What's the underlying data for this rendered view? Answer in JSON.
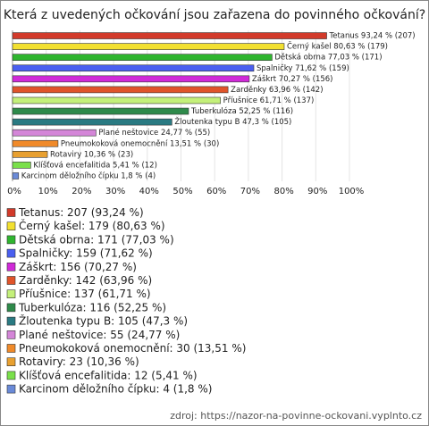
{
  "chart_data": {
    "type": "bar",
    "orientation": "horizontal",
    "title": "Která z uvedených očkování jsou zařazena do povinného očkování?",
    "categories": [
      "Tetanus",
      "Černý kašel",
      "Dětská obrna",
      "Spalničky",
      "Záškrt",
      "Zarděnky",
      "Příušnice",
      "Tuberkulóza",
      "Žloutenka typu B",
      "Plané neštovice",
      "Pneumokoková onemocnění",
      "Rotaviry",
      "Klíšťová encefalitida",
      "Karcinom děložního čípku"
    ],
    "values": [
      93.24,
      80.63,
      77.03,
      71.62,
      70.27,
      63.96,
      61.71,
      52.25,
      47.3,
      24.77,
      13.51,
      10.36,
      5.41,
      1.8
    ],
    "value_labels": [
      "Tetanus 93,24 % (207)",
      "Černý kašel 80,63 % (179)",
      "Dětská obrna 77,03 % (171)",
      "Spalničky 71,62 % (159)",
      "Záškrt 70,27 % (156)",
      "Zarděnky 63,96 % (142)",
      "Příušnice 61,71 % (137)",
      "Tuberkulóza 52,25 % (116)",
      "Žloutenka typu B 47,3 % (105)",
      "Plané neštovice 24,77 % (55)",
      "Pneumokoková onemocnění 13,51 % (30)",
      "Rotaviry 10,36 % (23)",
      "Klíšťová encefalitida 5,41 % (12)",
      "Karcinom děložního čípku 1,8 % (4)"
    ],
    "legend_labels": [
      "Tetanus: 207 (93,24 %)",
      "Černý kašel: 179 (80,63 %)",
      "Dětská obrna: 171 (77,03 %)",
      "Spalničky: 159 (71,62 %)",
      "Záškrt: 156 (70,27 %)",
      "Zarděnky: 142 (63,96 %)",
      "Příušnice: 137 (61,71 %)",
      "Tuberkulóza: 116 (52,25 %)",
      "Žloutenka typu B: 105 (47,3 %)",
      "Plané neštovice: 55 (24,77 %)",
      "Pneumokoková onemocnění: 30 (13,51 %)",
      "Rotaviry: 23 (10,36 %)",
      "Klíšťová encefalitida: 12 (5,41 %)",
      "Karcinom děložního čípku: 4 (1,8 %)"
    ],
    "colors": [
      "#d23a2a",
      "#f2e030",
      "#2fb52f",
      "#4a5ff0",
      "#d02ad8",
      "#e0542a",
      "#c4f07a",
      "#2e8a4a",
      "#2a7a82",
      "#d486d8",
      "#f08a2a",
      "#e8a030",
      "#7ae04a",
      "#6a8ad8"
    ],
    "xlim": [
      0,
      100
    ],
    "xticks": [
      {
        "value": 0,
        "label": "0%"
      },
      {
        "value": 10,
        "label": "10%"
      },
      {
        "value": 20,
        "label": "20%"
      },
      {
        "value": 30,
        "label": "30%"
      },
      {
        "value": 40,
        "label": "40%"
      },
      {
        "value": 50,
        "label": "50%"
      },
      {
        "value": 60,
        "label": "60%"
      },
      {
        "value": 70,
        "label": "70%"
      },
      {
        "value": 80,
        "label": "80%"
      },
      {
        "value": 90,
        "label": "90%"
      },
      {
        "value": 100,
        "label": "100%"
      }
    ],
    "grid": true,
    "source": "zdroj: https://nazor-na-povinne-ockovani.vyplnto.cz"
  }
}
